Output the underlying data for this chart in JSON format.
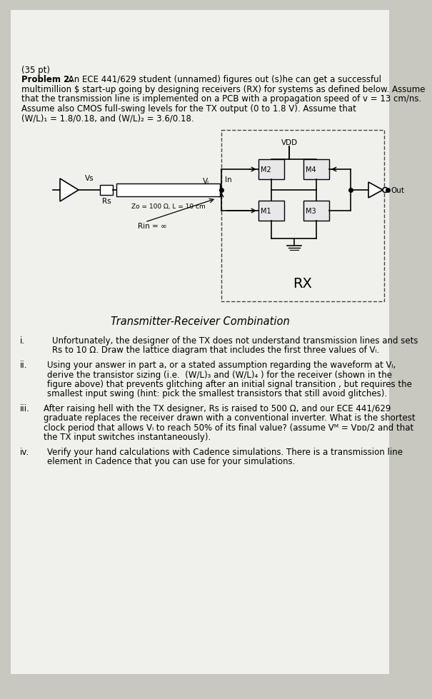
{
  "bg_color": "#c8c8c0",
  "paper_color": "#f0f0ec",
  "title_pt": "(35 pt)",
  "problem_bold": "Problem 2.",
  "problem_text_after_bold": " An ECE 441/629 student (unnamed) figures out (s)he can get a successful",
  "problem_lines": [
    "multimillion $ start-up going by designing receivers (RX) for systems as defined below. Assume",
    "that the transmission line is implemented on a PCB with a propagation speed of v = 13 cm/ns.",
    "Assume also CMOS full-swing levels for the TX output (0 to 1.8 V). Assume that",
    "(W/L)₁ = 1.8/0.18, and (W/L)₂ = 3.6/0.18."
  ],
  "circuit_caption": "Transmitter-Receiver Combination",
  "items": [
    {
      "label": "i.",
      "indent": 45,
      "text_lines": [
        "Unfortunately, the designer of the TX does not understand transmission lines and sets",
        "Rs to 10 Ω. Draw the lattice diagram that includes the first three values of Vₗ."
      ]
    },
    {
      "label": "ii.",
      "indent": 38,
      "text_lines": [
        "Using your answer in part a, or a stated assumption regarding the waveform at Vₗ,",
        "derive the transistor sizing (i.e.  (W/L)₃ and (W/L)₄ ) for the receiver (shown in the",
        "figure above) that prevents glitching after an initial signal transition , but requires the",
        "smallest input swing (hint: pick the smallest transistors that still avoid glitches)."
      ]
    },
    {
      "label": "iii.",
      "indent": 33,
      "text_lines": [
        "After raising hell with the TX designer, Rs is raised to 500 Ω, and our ECE 441/629",
        "graduate replaces the receiver drawn with a conventional inverter. What is the shortest",
        "clock period that allows Vₗ to reach 50% of its final value? (assume Vᴹ = Vᴅᴅ/2 and that",
        "the TX input switches instantaneously)."
      ]
    },
    {
      "label": "iv.",
      "indent": 38,
      "text_lines": [
        "Verify your hand calculations with Cadence simulations. There is a transmission line",
        "element in Cadence that you can use for your simulations."
      ]
    }
  ]
}
